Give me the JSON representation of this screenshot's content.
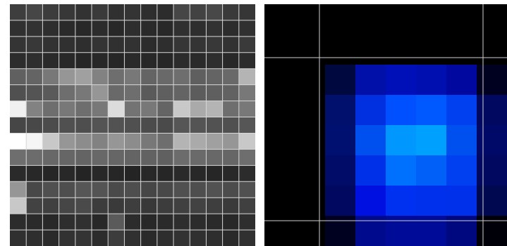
{
  "left_panel": {
    "cols": 15,
    "rows": 15,
    "grid_color": "#d8d8d8",
    "background": "#1e1e1e",
    "tones": [
      [
        62,
        70,
        60,
        55,
        50,
        58,
        48,
        52,
        46,
        44,
        70,
        66,
        72,
        58,
        54
      ],
      [
        48,
        50,
        46,
        42,
        40,
        44,
        40,
        46,
        42,
        40,
        48,
        46,
        50,
        44,
        48
      ],
      [
        52,
        56,
        50,
        48,
        46,
        52,
        48,
        50,
        44,
        46,
        54,
        52,
        56,
        50,
        58
      ],
      [
        44,
        46,
        42,
        40,
        38,
        40,
        38,
        42,
        40,
        38,
        44,
        42,
        46,
        40,
        44
      ],
      [
        96,
        100,
        120,
        150,
        160,
        130,
        110,
        120,
        100,
        105,
        110,
        95,
        100,
        105,
        180
      ],
      [
        80,
        84,
        90,
        110,
        120,
        150,
        105,
        110,
        90,
        95,
        100,
        92,
        95,
        98,
        120
      ],
      [
        240,
        130,
        110,
        120,
        110,
        120,
        220,
        115,
        120,
        100,
        200,
        170,
        180,
        110,
        120
      ],
      [
        70,
        72,
        76,
        80,
        78,
        84,
        82,
        80,
        76,
        74,
        86,
        84,
        82,
        80,
        86
      ],
      [
        255,
        245,
        200,
        150,
        140,
        130,
        150,
        140,
        120,
        110,
        180,
        170,
        160,
        150,
        200
      ],
      [
        110,
        108,
        104,
        102,
        100,
        104,
        102,
        100,
        98,
        96,
        108,
        106,
        104,
        102,
        110
      ],
      [
        42,
        40,
        38,
        40,
        36,
        40,
        38,
        36,
        40,
        38,
        42,
        40,
        38,
        40,
        44
      ],
      [
        150,
        72,
        80,
        78,
        86,
        84,
        74,
        78,
        70,
        72,
        80,
        78,
        82,
        76,
        80
      ],
      [
        200,
        66,
        64,
        70,
        74,
        60,
        58,
        62,
        56,
        60,
        64,
        66,
        62,
        58,
        64
      ],
      [
        44,
        42,
        40,
        46,
        48,
        40,
        90,
        44,
        40,
        42,
        46,
        44,
        42,
        40,
        46
      ],
      [
        48,
        46,
        42,
        50,
        52,
        44,
        60,
        48,
        42,
        46,
        50,
        48,
        46,
        42,
        48
      ]
    ]
  },
  "right_panel": {
    "cols": 8,
    "rows": 8,
    "grid_color": "#cfcfcf",
    "background": "#000000",
    "colors": [
      [
        "#000000",
        "#000000",
        "#000000",
        "#000000",
        "#000000",
        "#000000",
        "#000000",
        "#000000"
      ],
      [
        "#000000",
        "#000000",
        "#000000",
        "#000000",
        "#000000",
        "#000000",
        "#000000",
        "#000000"
      ],
      [
        "#000000",
        "#000000",
        "#000840",
        "#0010a8",
        "#0010b8",
        "#0010b0",
        "#0008a0",
        "#000020"
      ],
      [
        "#000000",
        "#000000",
        "#00106c",
        "#0030e0",
        "#0050ff",
        "#0058ff",
        "#0040ee",
        "#000860"
      ],
      [
        "#000000",
        "#000000",
        "#001070",
        "#0050f0",
        "#0098ff",
        "#00a0ff",
        "#0050f0",
        "#000868"
      ],
      [
        "#000000",
        "#000000",
        "#000c68",
        "#0030e8",
        "#0070ff",
        "#0060f8",
        "#0040f0",
        "#000860"
      ],
      [
        "#000000",
        "#000000",
        "#000860",
        "#0010e0",
        "#0030f0",
        "#0030ec",
        "#0030ea",
        "#000850"
      ],
      [
        "#000000",
        "#000000",
        "#000020",
        "#000a8c",
        "#000c98",
        "#000c98",
        "#000880",
        "#000008"
      ]
    ],
    "lines": {
      "vertical": [
        78,
        310
      ],
      "horizontal": [
        76,
        308
      ]
    }
  }
}
